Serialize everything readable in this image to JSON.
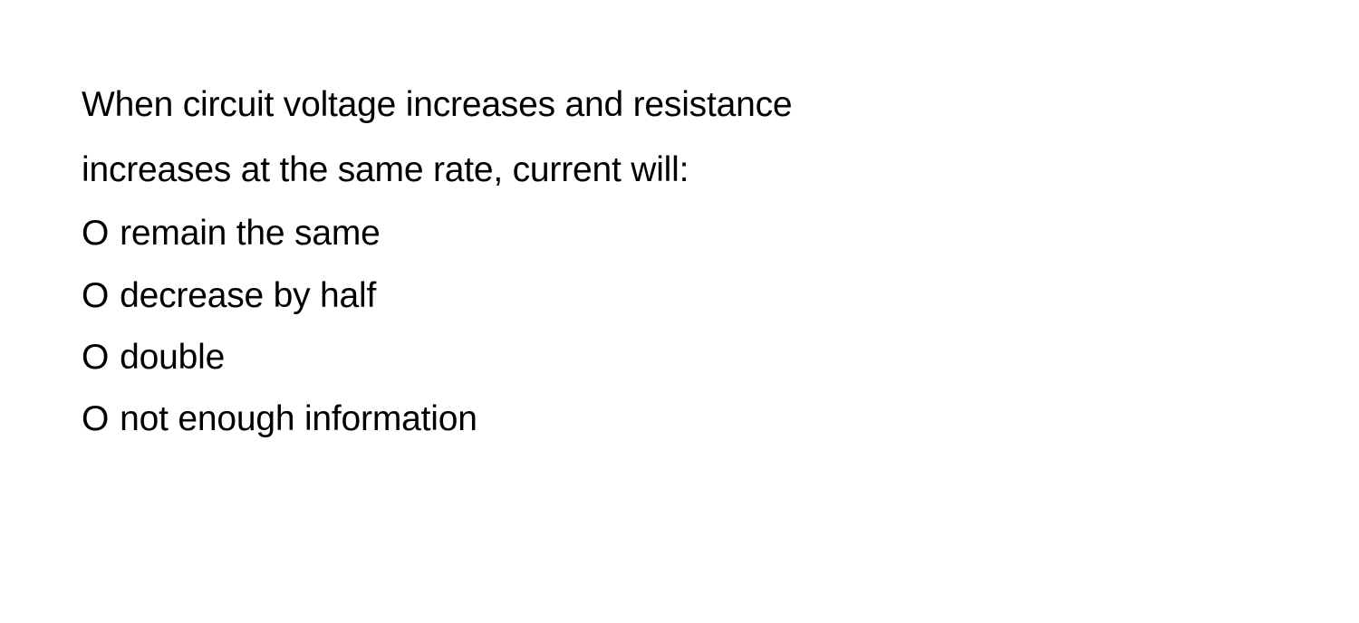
{
  "question": {
    "text_line1": "When circuit voltage increases and resistance",
    "text_line2": "increases at the same rate, current will:",
    "options": [
      "remain the same",
      "decrease by half",
      "double",
      "not enough information"
    ],
    "radio_marker": "O"
  },
  "styles": {
    "background_color": "#ffffff",
    "text_color": "#000000",
    "font_size": 39,
    "line_height": 1.85
  }
}
